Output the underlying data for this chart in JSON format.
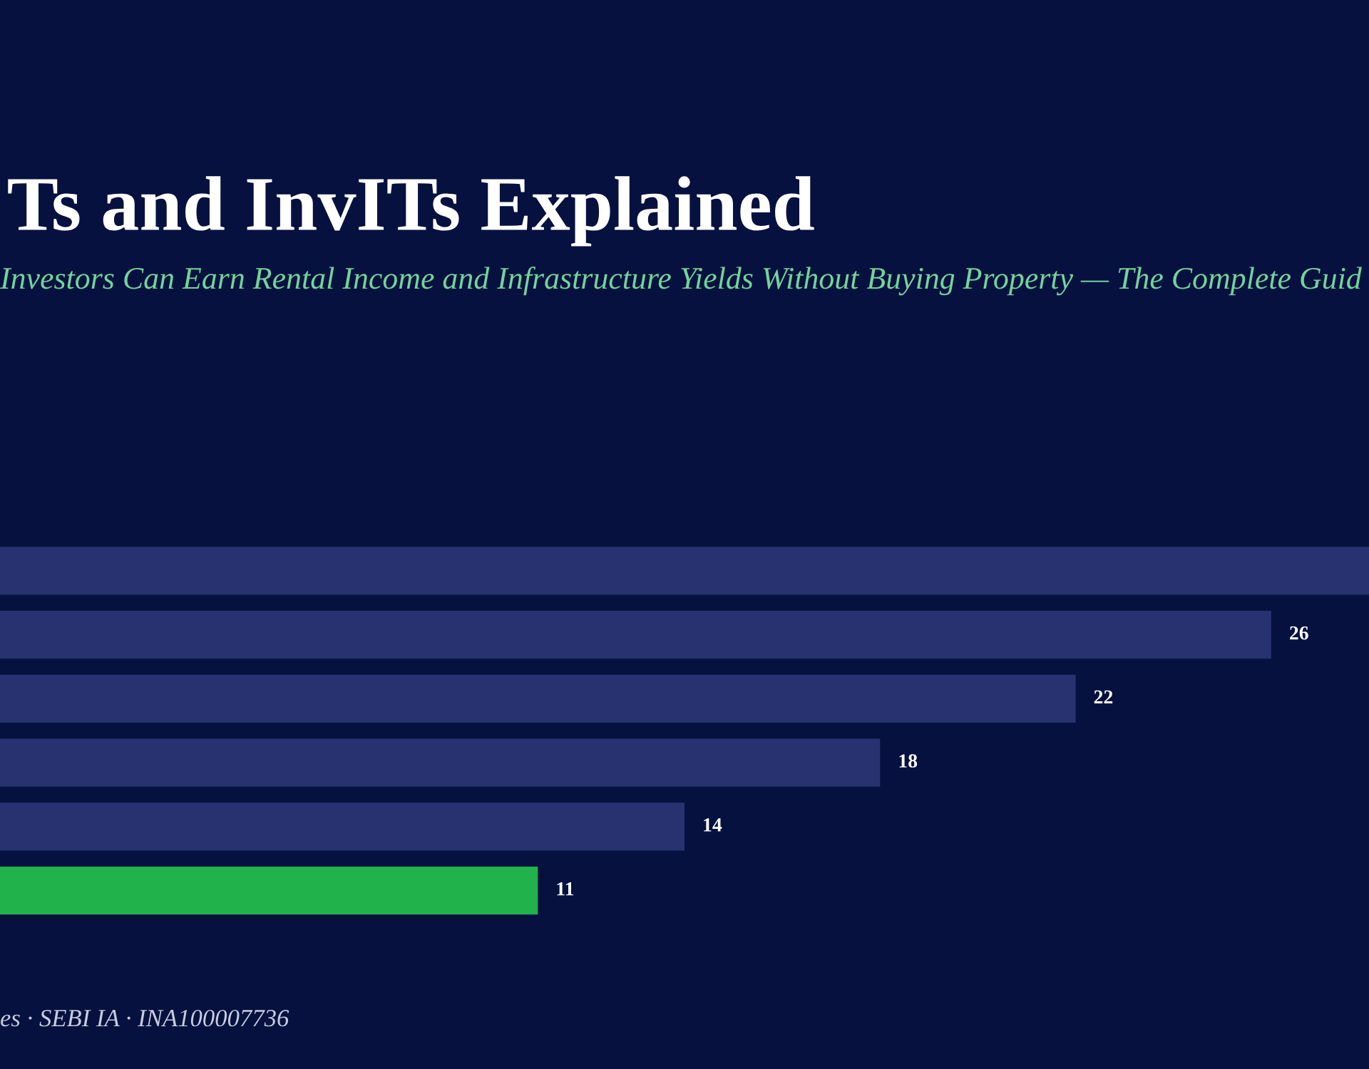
{
  "chart_data": {
    "type": "bar",
    "orientation": "horizontal",
    "title": "Ts and InvITs Explained",
    "subtitle": "Investors Can Earn Rental Income and Infrastructure Yields Without Buying Property — The Complete Guid",
    "annotations": [
      "es · SEBI IA · INA100007736"
    ],
    "categories": [
      null,
      null,
      null,
      null,
      null,
      null
    ],
    "values": [
      28,
      26,
      22,
      18,
      14,
      11
    ],
    "value_labels": [
      null,
      "26",
      "22",
      "18",
      "14",
      "11"
    ],
    "colors": [
      "#283270",
      "#283270",
      "#283270",
      "#283270",
      "#283270",
      "#22b24c"
    ]
  }
}
